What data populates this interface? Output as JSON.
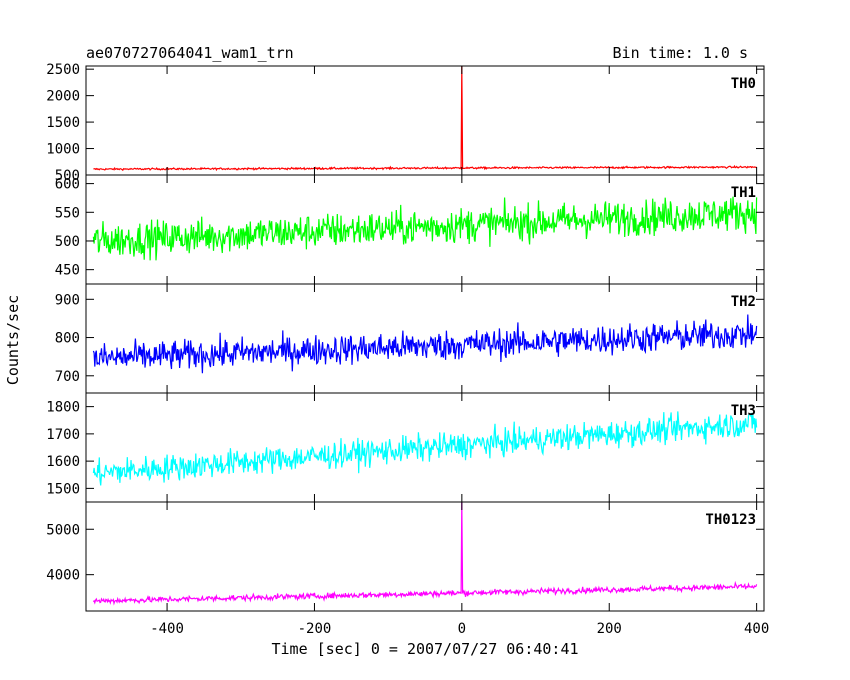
{
  "chart_data": {
    "type": "line",
    "title": "ae070727064041_wam1_trn",
    "subtitle": "Bin time: 1.0 s",
    "xlabel": "Time [sec] 0 = 2007/07/27 06:40:41",
    "ylabel": "Counts/sec",
    "xlim": [
      -510,
      410
    ],
    "xticks": [
      -400,
      -200,
      0,
      200,
      400
    ],
    "panels": [
      {
        "name": "TH0",
        "color": "#ff0000",
        "ylim": [
          500,
          2560
        ],
        "yticks": [
          500,
          1000,
          1500,
          2000,
          2500
        ],
        "baseline": [
          [
            -500,
            610
          ],
          [
            400,
            650
          ]
        ],
        "noise": 12,
        "spike": {
          "x": 0,
          "y": 2560
        }
      },
      {
        "name": "TH1",
        "color": "#00ff00",
        "ylim": [
          425,
          615
        ],
        "yticks": [
          450,
          500,
          550,
          600
        ],
        "baseline": [
          [
            -500,
            500
          ],
          [
            400,
            550
          ]
        ],
        "noise": 22
      },
      {
        "name": "TH2",
        "color": "#0000ff",
        "ylim": [
          655,
          940
        ],
        "yticks": [
          700,
          800,
          900
        ],
        "baseline": [
          [
            -500,
            745
          ],
          [
            400,
            810
          ]
        ],
        "noise": 28
      },
      {
        "name": "TH3",
        "color": "#00ffff",
        "ylim": [
          1450,
          1850
        ],
        "yticks": [
          1500,
          1600,
          1700,
          1800
        ],
        "baseline": [
          [
            -500,
            1555
          ],
          [
            400,
            1740
          ]
        ],
        "noise": 35
      },
      {
        "name": "TH0123",
        "color": "#ff00ff",
        "ylim": [
          3200,
          5600
        ],
        "yticks": [
          4000,
          5000
        ],
        "baseline": [
          [
            -500,
            3420
          ],
          [
            400,
            3740
          ]
        ],
        "noise": 45,
        "spike": {
          "x": 0,
          "y": 5600
        }
      }
    ]
  }
}
